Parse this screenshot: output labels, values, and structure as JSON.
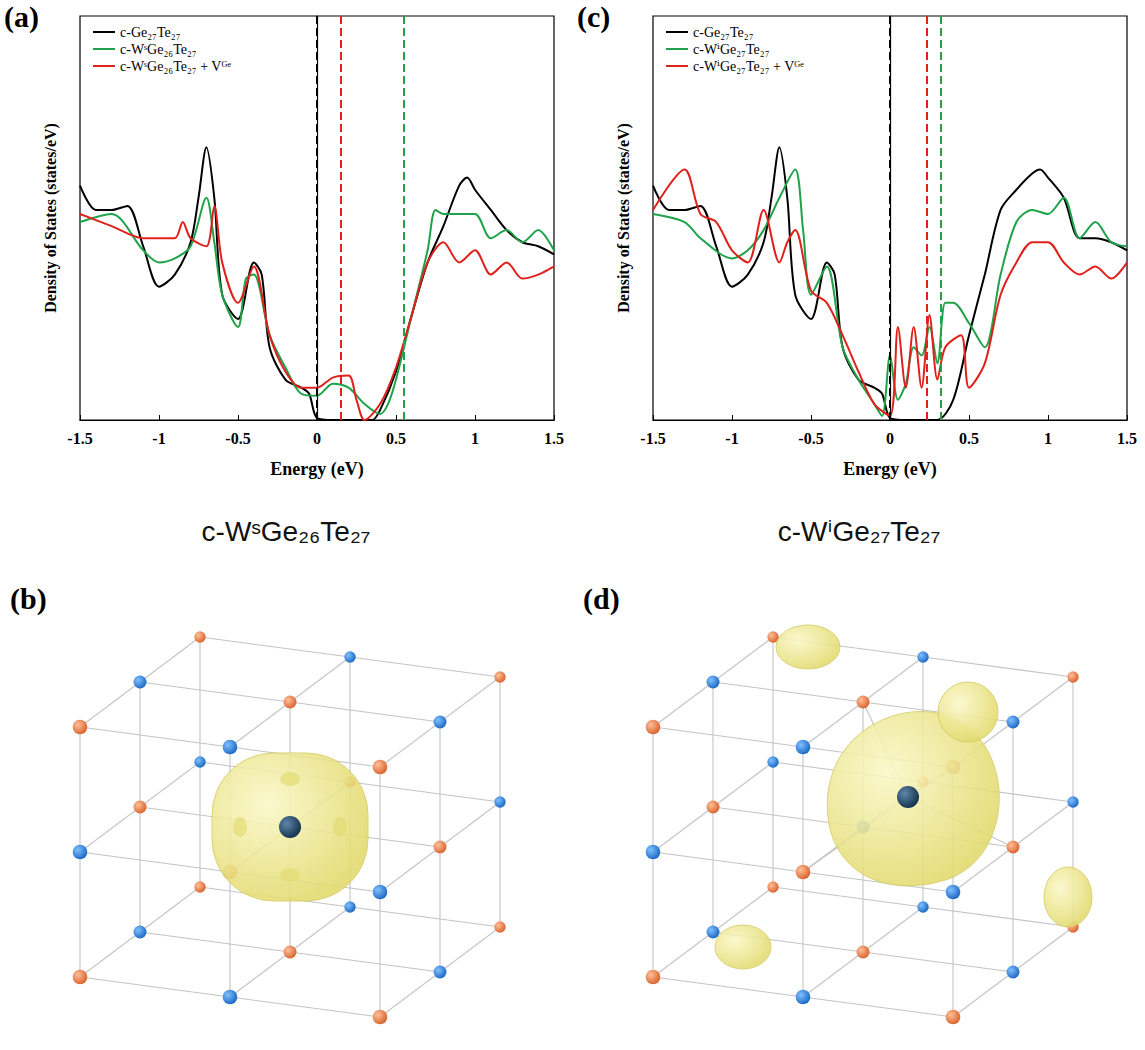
{
  "chart_data": [
    {
      "type": "line",
      "panel_label": "(a)",
      "x_label": "Energy (eV)",
      "y_label": "Density of States (states/eV)",
      "xlim": [
        -1.5,
        1.5
      ],
      "xticks": [
        -1.5,
        -1,
        -0.5,
        0,
        0.5,
        1,
        1.5
      ],
      "ylim": [
        0,
        10
      ],
      "tick_labels": "x",
      "legend": "top-left",
      "grid": false,
      "series": [
        {
          "name": "c-Ge₂₇Te₂₇",
          "color": "#000000",
          "fermi_level": 0,
          "x": [
            -1.5,
            -1.4,
            -1.3,
            -1.2,
            -1.1,
            -1.0,
            -0.9,
            -0.8,
            -0.75,
            -0.7,
            -0.65,
            -0.6,
            -0.5,
            -0.4,
            -0.35,
            -0.3,
            -0.2,
            -0.1,
            -0.05,
            0,
            0.1,
            0.2,
            0.3,
            0.35,
            0.4,
            0.5,
            0.6,
            0.7,
            0.8,
            0.9,
            0.95,
            1.0,
            1.1,
            1.2,
            1.3,
            1.4,
            1.5
          ],
          "values": [
            5.8,
            5.2,
            5.2,
            5.3,
            4.3,
            3.3,
            3.6,
            4.4,
            5.5,
            6.75,
            5.5,
            3.1,
            2.5,
            3.9,
            3.6,
            1.8,
            1.0,
            0.8,
            0.65,
            0.05,
            0,
            0,
            0,
            0,
            0.25,
            1.2,
            2.6,
            3.9,
            4.8,
            5.8,
            6.0,
            5.7,
            5.2,
            4.7,
            4.4,
            4.3,
            4.1
          ]
        },
        {
          "name": "c-WˢGe₂₆Te₂₇",
          "color": "#1fa24a",
          "fermi_level": 0.55,
          "x": [
            -1.5,
            -1.3,
            -1.1,
            -1.0,
            -0.9,
            -0.8,
            -0.7,
            -0.65,
            -0.6,
            -0.5,
            -0.45,
            -0.4,
            -0.3,
            -0.2,
            -0.1,
            0,
            0.1,
            0.2,
            0.3,
            0.4,
            0.45,
            0.5,
            0.6,
            0.7,
            0.75,
            0.8,
            0.9,
            1.0,
            1.1,
            1.2,
            1.3,
            1.4,
            1.5
          ],
          "values": [
            4.9,
            5.1,
            4.2,
            3.9,
            4.0,
            4.3,
            5.5,
            4.4,
            3.1,
            2.3,
            3.5,
            3.6,
            2.1,
            1.3,
            0.65,
            0.6,
            0.9,
            0.8,
            0.4,
            0.15,
            0.4,
            1.0,
            2.6,
            4.2,
            5.2,
            5.1,
            5.1,
            5.1,
            4.5,
            4.7,
            4.4,
            4.7,
            4.2
          ]
        },
        {
          "name": "c-WˢGe₂₆Te₂₇ + Vᴳᵉ",
          "color": "#e0201b",
          "fermi_level": 0.15,
          "x": [
            -1.5,
            -1.3,
            -1.1,
            -0.9,
            -0.85,
            -0.8,
            -0.7,
            -0.65,
            -0.6,
            -0.5,
            -0.4,
            -0.3,
            -0.2,
            -0.1,
            0,
            0.1,
            0.2,
            0.25,
            0.3,
            0.4,
            0.5,
            0.6,
            0.7,
            0.8,
            0.9,
            1.0,
            1.1,
            1.2,
            1.3,
            1.4,
            1.5
          ],
          "values": [
            5.1,
            4.8,
            4.5,
            4.5,
            4.9,
            4.5,
            4.3,
            5.3,
            3.9,
            2.9,
            3.8,
            2.1,
            1.2,
            0.8,
            0.8,
            1.05,
            1.1,
            0.5,
            0,
            0.4,
            1.3,
            2.6,
            3.9,
            4.4,
            3.9,
            4.2,
            3.6,
            3.9,
            3.5,
            3.6,
            3.8
          ]
        }
      ]
    },
    {
      "type": "line",
      "panel_label": "(c)",
      "x_label": "Energy (eV)",
      "y_label": "Density of States (states/eV)",
      "xlim": [
        -1.5,
        1.5
      ],
      "xticks": [
        -1.5,
        -1,
        -0.5,
        0,
        0.5,
        1,
        1.5
      ],
      "ylim": [
        0,
        10
      ],
      "tick_labels": "x",
      "legend": "top-left",
      "grid": false,
      "series": [
        {
          "name": "c-Ge₂₇Te₂₇",
          "color": "#000000",
          "fermi_level": 0,
          "x": [
            -1.5,
            -1.4,
            -1.3,
            -1.2,
            -1.1,
            -1.0,
            -0.9,
            -0.8,
            -0.75,
            -0.7,
            -0.65,
            -0.6,
            -0.5,
            -0.4,
            -0.35,
            -0.3,
            -0.2,
            -0.1,
            -0.05,
            0,
            0.1,
            0.2,
            0.3,
            0.4,
            0.5,
            0.6,
            0.7,
            0.8,
            0.9,
            0.95,
            1.0,
            1.1,
            1.2,
            1.3,
            1.4,
            1.5
          ],
          "values": [
            5.8,
            5.2,
            5.2,
            5.3,
            4.3,
            3.3,
            3.6,
            4.4,
            5.5,
            6.75,
            5.5,
            3.1,
            2.5,
            3.9,
            3.6,
            1.8,
            1.0,
            0.8,
            0.65,
            0.05,
            0,
            0,
            0,
            0.5,
            2.1,
            3.6,
            5.2,
            5.7,
            6.1,
            6.2,
            6.0,
            5.5,
            4.5,
            4.5,
            4.4,
            4.2
          ]
        },
        {
          "name": "c-WⁱGe₂₇Te₂₇",
          "color": "#1fa24a",
          "fermi_level": 0.32,
          "x": [
            -1.5,
            -1.3,
            -1.2,
            -1.0,
            -0.9,
            -0.8,
            -0.7,
            -0.6,
            -0.55,
            -0.5,
            -0.4,
            -0.3,
            -0.2,
            -0.1,
            -0.05,
            0,
            0.05,
            0.1,
            0.15,
            0.2,
            0.25,
            0.3,
            0.35,
            0.4,
            0.5,
            0.6,
            0.7,
            0.8,
            0.9,
            1.0,
            1.1,
            1.2,
            1.3,
            1.4,
            1.5
          ],
          "values": [
            5.1,
            4.9,
            4.5,
            4.0,
            4.2,
            4.7,
            5.5,
            6.2,
            4.7,
            3.1,
            3.8,
            1.8,
            1.0,
            0.4,
            0.1,
            1.6,
            0.5,
            0.9,
            1.8,
            1.6,
            2.3,
            1.4,
            2.9,
            2.9,
            2.4,
            1.8,
            3.6,
            4.9,
            5.2,
            5.1,
            5.5,
            4.5,
            4.9,
            4.4,
            4.3
          ]
        },
        {
          "name": "c-WⁱGe₂₇Te₂₇ + Vᴳᵉ",
          "color": "#e0201b",
          "fermi_level": 0.23,
          "x": [
            -1.5,
            -1.3,
            -1.2,
            -1.1,
            -1.0,
            -0.9,
            -0.8,
            -0.7,
            -0.65,
            -0.6,
            -0.5,
            -0.4,
            -0.3,
            -0.2,
            -0.1,
            0,
            0.05,
            0.1,
            0.15,
            0.2,
            0.25,
            0.3,
            0.35,
            0.45,
            0.5,
            0.6,
            0.7,
            0.8,
            0.9,
            1.0,
            1.1,
            1.2,
            1.3,
            1.4,
            1.5
          ],
          "values": [
            5.2,
            6.2,
            5.1,
            4.9,
            4.2,
            3.9,
            5.2,
            3.9,
            4.4,
            4.7,
            3.2,
            2.9,
            2.1,
            1.2,
            0.4,
            0.1,
            2.3,
            0.8,
            2.3,
            0.8,
            2.6,
            1.0,
            1.8,
            2.1,
            0.8,
            1.4,
            3.1,
            3.9,
            4.4,
            4.4,
            3.9,
            3.6,
            3.8,
            3.5,
            3.9
          ]
        }
      ]
    }
  ],
  "diagrams": [
    {
      "panel_label": "(b)",
      "title": "c-WˢGe₂₆Te₂₇"
    },
    {
      "panel_label": "(d)",
      "title": "c-WⁱGe₂₇Te₂₇"
    }
  ]
}
